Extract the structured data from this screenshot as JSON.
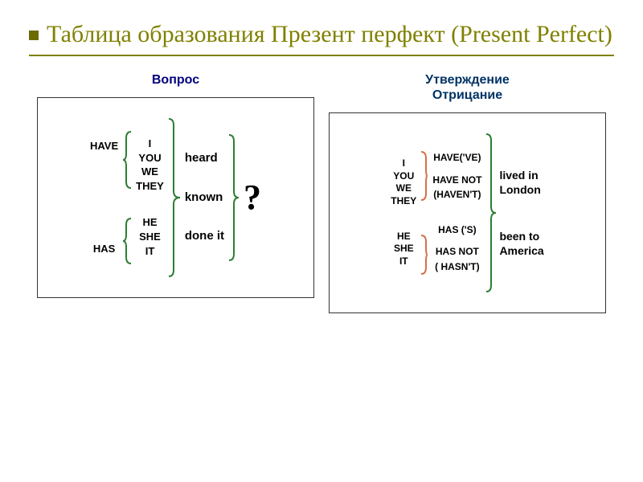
{
  "colors": {
    "title": "#808000",
    "bullet": "#6b6b00",
    "rule": "#808000",
    "header_q": "#000080",
    "header_aff_neg": "#003366",
    "brace_stroke": "#2e7d32",
    "small_brace_stroke": "#d66f4a",
    "panel_border": "#333333",
    "text": "#000000",
    "bg": "#ffffff"
  },
  "title": "Таблица образования Презент перфект (Present Perfect)",
  "headers": {
    "question": "Вопрос",
    "aff": "Утверждение",
    "neg": "Отрицание"
  },
  "question_panel": {
    "aux1": "HAVE",
    "aux2": "HAS",
    "subj_a": [
      "I",
      "YOU",
      "WE",
      "THEY"
    ],
    "subj_b": [
      "HE",
      "SHE",
      "IT"
    ],
    "verbs": [
      "heard",
      "known",
      "done it"
    ],
    "mark": "?"
  },
  "aff_neg_panel": {
    "subj_a": [
      "I",
      "YOU",
      "WE",
      "THEY"
    ],
    "subj_b": [
      "HE",
      "SHE",
      "IT"
    ],
    "aux_a_pos": "HAVE('VE)",
    "aux_a_neg1": "HAVE NOT",
    "aux_a_neg2": "(HAVEN'T)",
    "aux_b_pos": "HAS ('S)",
    "aux_b_neg1": "HAS NOT",
    "aux_b_neg2": "( HASN'T)",
    "compl_1a": "lived in",
    "compl_1b": "London",
    "compl_2a": "been to",
    "compl_2b": "America"
  },
  "brace": {
    "stroke_width": 2
  }
}
